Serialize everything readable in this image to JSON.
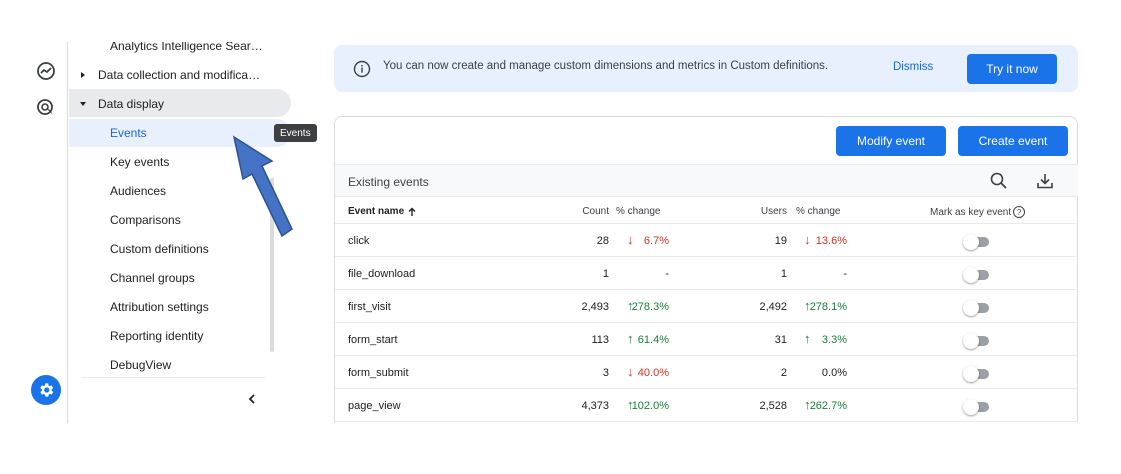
{
  "nav": {
    "items": [
      {
        "label": "Analytics Intelligence Sear…"
      },
      {
        "label": "Data collection and modifica…"
      },
      {
        "label": "Data display"
      },
      {
        "label": "Events"
      },
      {
        "label": "Key events"
      },
      {
        "label": "Audiences"
      },
      {
        "label": "Comparisons"
      },
      {
        "label": "Custom definitions"
      },
      {
        "label": "Channel groups"
      },
      {
        "label": "Attribution settings"
      },
      {
        "label": "Reporting identity"
      },
      {
        "label": "DebugView"
      }
    ],
    "tooltip": "Events"
  },
  "banner": {
    "text": "You can now create and manage custom dimensions and metrics in Custom definitions.",
    "dismiss": "Dismiss",
    "try_now": "Try it now"
  },
  "actions": {
    "modify": "Modify event",
    "create": "Create event"
  },
  "table": {
    "title": "Existing events",
    "columns": {
      "name": "Event name",
      "count": "Count",
      "count_change": "% change",
      "users": "Users",
      "users_change": "% change",
      "key_event": "Mark as key event",
      "help": "?"
    },
    "rows": [
      {
        "name": "click",
        "count": "28",
        "count_change": "6.7%",
        "count_dir": "down",
        "users": "19",
        "users_change": "13.6%",
        "users_dir": "down"
      },
      {
        "name": "file_download",
        "count": "1",
        "count_change": "-",
        "count_dir": "none",
        "users": "1",
        "users_change": "-",
        "users_dir": "none"
      },
      {
        "name": "first_visit",
        "count": "2,493",
        "count_change": "278.3%",
        "count_dir": "up",
        "users": "2,492",
        "users_change": "278.1%",
        "users_dir": "up"
      },
      {
        "name": "form_start",
        "count": "113",
        "count_change": "61.4%",
        "count_dir": "up",
        "users": "31",
        "users_change": "3.3%",
        "users_dir": "up"
      },
      {
        "name": "form_submit",
        "count": "3",
        "count_change": "40.0%",
        "count_dir": "down",
        "users": "2",
        "users_change": "0.0%",
        "users_dir": "none"
      },
      {
        "name": "page_view",
        "count": "4,373",
        "count_change": "102.0%",
        "count_dir": "up",
        "users": "2,528",
        "users_change": "262.7%",
        "users_dir": "up"
      }
    ]
  },
  "colors": {
    "accent": "#1a73e8",
    "up": "#188038",
    "down": "#d93025",
    "annotation_arrow": "#4472c4"
  }
}
